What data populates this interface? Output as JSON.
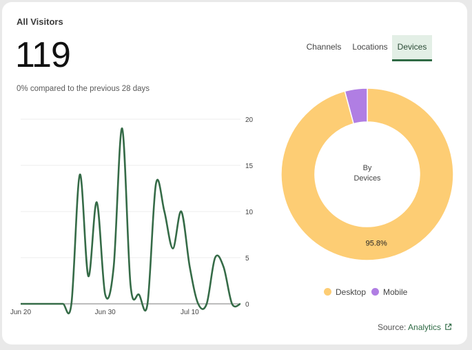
{
  "card": {
    "title": "All Visitors",
    "total": "119",
    "comparison": "0% compared to the previous 28 days"
  },
  "tabs": [
    {
      "label": "Channels",
      "active": false
    },
    {
      "label": "Locations",
      "active": false
    },
    {
      "label": "Devices",
      "active": true
    }
  ],
  "chart_data": [
    {
      "type": "line",
      "title": "",
      "xlabel": "",
      "ylabel": "",
      "x_tick_labels": [
        "Jun 20",
        "Jun 30",
        "Jul 10"
      ],
      "y_ticks": [
        0,
        5,
        10,
        15,
        20
      ],
      "ylim": [
        0,
        20
      ],
      "grid": true,
      "series": [
        {
          "color": "#356b47",
          "x": [
            "Jun 20",
            "Jun 21",
            "Jun 22",
            "Jun 23",
            "Jun 24",
            "Jun 25",
            "Jun 26",
            "Jun 27",
            "Jun 28",
            "Jun 29",
            "Jun 30",
            "Jul 1",
            "Jul 2",
            "Jul 3",
            "Jul 4",
            "Jul 5",
            "Jul 6",
            "Jul 7",
            "Jul 8",
            "Jul 9",
            "Jul 10",
            "Jul 11",
            "Jul 12",
            "Jul 13",
            "Jul 14",
            "Jul 15",
            "Jul 16"
          ],
          "values": [
            0,
            0,
            0,
            0,
            0,
            0,
            0,
            14,
            3,
            11,
            1,
            4,
            19,
            2,
            1,
            0,
            13,
            10,
            6,
            10,
            4,
            0,
            0,
            5,
            4,
            0,
            0
          ]
        }
      ]
    },
    {
      "type": "pie",
      "center_label": [
        "By",
        "Devices"
      ],
      "slices": [
        {
          "label": "Desktop",
          "value": 95.8,
          "color": "#fdcd74",
          "display": "95.8%"
        },
        {
          "label": "Mobile",
          "value": 4.2,
          "color": "#b07ee3",
          "display": ""
        }
      ],
      "legend_position": "bottom"
    }
  ],
  "legend": [
    {
      "label": "Desktop",
      "color": "#fdcd74"
    },
    {
      "label": "Mobile",
      "color": "#b07ee3"
    }
  ],
  "source": {
    "prefix": "Source: ",
    "link_label": "Analytics",
    "icon": "external-link-icon"
  }
}
